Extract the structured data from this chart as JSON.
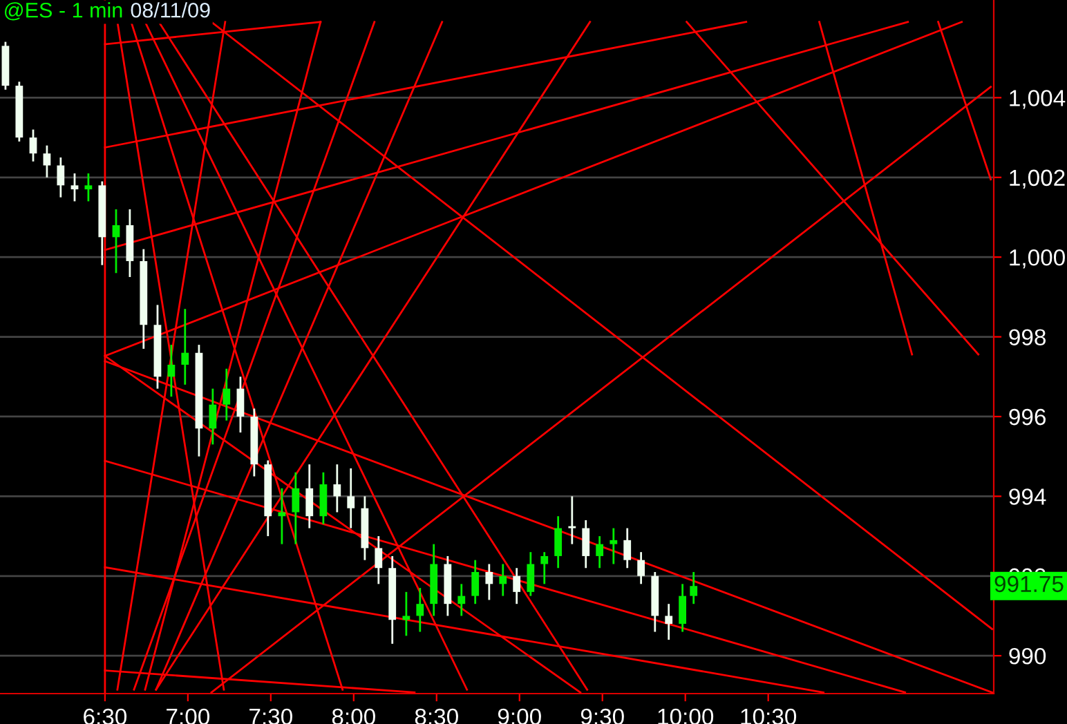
{
  "chart_data": {
    "type": "candlestick",
    "title": "@ES - 1 min",
    "subtitle": "08/11/09",
    "x": [
      5.9,
      5.983,
      6.067,
      6.15,
      6.233,
      6.317,
      6.4,
      6.483,
      6.567,
      6.65,
      6.733,
      6.817,
      6.9,
      6.983,
      7.067,
      7.15,
      7.233,
      7.317,
      7.4,
      7.483,
      7.567,
      7.65,
      7.733,
      7.817,
      7.9,
      7.983,
      8.067,
      8.15,
      8.233,
      8.317,
      8.4,
      8.483,
      8.567,
      8.65,
      8.733,
      8.817,
      8.9,
      8.983,
      9.067,
      9.15,
      9.233,
      9.317,
      9.4,
      9.483,
      9.567,
      9.65,
      9.733,
      9.817,
      9.9,
      9.983,
      10.05
    ],
    "ohlc": [
      [
        1005.3,
        1005.4,
        1004.2,
        1004.3
      ],
      [
        1004.3,
        1004.4,
        1002.9,
        1003.0
      ],
      [
        1003.0,
        1003.2,
        1002.4,
        1002.6
      ],
      [
        1002.6,
        1002.8,
        1002.0,
        1002.3
      ],
      [
        1002.3,
        1002.5,
        1001.5,
        1001.8
      ],
      [
        1001.8,
        1002.1,
        1001.4,
        1001.7
      ],
      [
        1001.7,
        1002.1,
        1001.4,
        1001.8
      ],
      [
        1001.8,
        1001.9,
        999.8,
        1000.5
      ],
      [
        1000.5,
        1001.2,
        999.6,
        1000.8
      ],
      [
        1000.8,
        1001.2,
        999.5,
        999.9
      ],
      [
        999.9,
        1000.2,
        997.7,
        998.3
      ],
      [
        998.3,
        998.8,
        996.7,
        997.0
      ],
      [
        997.0,
        997.8,
        996.5,
        997.3
      ],
      [
        997.3,
        998.7,
        996.8,
        997.6
      ],
      [
        997.6,
        997.8,
        995.0,
        995.7
      ],
      [
        995.7,
        996.7,
        995.3,
        996.3
      ],
      [
        996.3,
        997.2,
        995.9,
        996.7
      ],
      [
        996.7,
        997.0,
        995.6,
        996.0
      ],
      [
        996.0,
        996.2,
        994.5,
        994.8
      ],
      [
        994.8,
        994.9,
        993.0,
        993.5
      ],
      [
        993.5,
        994.2,
        992.8,
        993.6
      ],
      [
        993.6,
        994.6,
        992.8,
        994.2
      ],
      [
        994.2,
        994.8,
        993.2,
        993.5
      ],
      [
        993.5,
        994.6,
        993.3,
        994.3
      ],
      [
        994.3,
        994.8,
        993.6,
        994.0
      ],
      [
        994.0,
        994.7,
        993.2,
        993.7
      ],
      [
        993.7,
        994.0,
        992.4,
        992.7
      ],
      [
        992.7,
        993.0,
        991.8,
        992.2
      ],
      [
        992.2,
        992.5,
        990.3,
        990.9
      ],
      [
        990.9,
        991.6,
        990.5,
        991.0
      ],
      [
        991.0,
        991.7,
        990.6,
        991.3
      ],
      [
        991.3,
        992.8,
        991.0,
        992.3
      ],
      [
        992.3,
        992.5,
        991.0,
        991.3
      ],
      [
        991.3,
        991.8,
        991.0,
        991.5
      ],
      [
        991.5,
        992.4,
        991.3,
        992.1
      ],
      [
        992.1,
        992.3,
        991.4,
        991.8
      ],
      [
        991.8,
        992.3,
        991.5,
        992.0
      ],
      [
        992.0,
        992.2,
        991.3,
        991.6
      ],
      [
        991.6,
        992.6,
        991.5,
        992.3
      ],
      [
        992.3,
        992.6,
        991.8,
        992.5
      ],
      [
        992.5,
        993.5,
        992.2,
        993.2
      ],
      [
        993.2,
        994.0,
        992.8,
        993.2
      ],
      [
        993.2,
        993.4,
        992.2,
        992.5
      ],
      [
        992.5,
        993.0,
        992.2,
        992.8
      ],
      [
        992.8,
        993.2,
        992.3,
        992.9
      ],
      [
        992.9,
        993.2,
        992.2,
        992.4
      ],
      [
        992.4,
        992.6,
        991.8,
        992.0
      ],
      [
        992.0,
        992.1,
        990.6,
        991.0
      ],
      [
        991.0,
        991.3,
        990.4,
        990.8
      ],
      [
        990.8,
        991.8,
        990.6,
        991.5
      ],
      [
        991.5,
        992.1,
        991.3,
        991.75
      ]
    ],
    "colors": [
      "#f0fff0",
      "#f0fff0",
      "#f0fff0",
      "#f0fff0",
      "#f0fff0",
      "#f0fff0",
      "#00ee00",
      "#f0fff0",
      "#00ee00",
      "#f0fff0",
      "#f0fff0",
      "#f0fff0",
      "#00ee00",
      "#00ee00",
      "#f0fff0",
      "#00ee00",
      "#00ee00",
      "#f0fff0",
      "#f0fff0",
      "#f0fff0",
      "#00ee00",
      "#00ee00",
      "#f0fff0",
      "#00ee00",
      "#f0fff0",
      "#f0fff0",
      "#f0fff0",
      "#f0fff0",
      "#f0fff0",
      "#00ee00",
      "#00ee00",
      "#00ee00",
      "#f0fff0",
      "#00ee00",
      "#00ee00",
      "#f0fff0",
      "#00ee00",
      "#f0fff0",
      "#00ee00",
      "#00ee00",
      "#00ee00",
      "#f0fff0",
      "#f0fff0",
      "#00ee00",
      "#00ee00",
      "#f0fff0",
      "#f0fff0",
      "#f0fff0",
      "#f0fff0",
      "#00ee00",
      "#00ee00"
    ],
    "series": [
      {
        "type": "line",
        "color": "#ff0000",
        "x": [
          6.5,
          7.8
        ],
        "values": [
          1005.34,
          1005.9
        ]
      },
      {
        "type": "line",
        "color": "#ff0000",
        "x": [
          6.5,
          10.367
        ],
        "values": [
          1002.75,
          1005.9
        ]
      },
      {
        "type": "line",
        "color": "#ff0000",
        "x": [
          6.5,
          11.342
        ],
        "values": [
          1000.18,
          1005.9
        ]
      },
      {
        "type": "line",
        "color": "#ff0000",
        "x": [
          6.5,
          11.667
        ],
        "values": [
          997.52,
          1005.9
        ]
      },
      {
        "type": "line",
        "color": "#ff0000",
        "x": [
          7.142,
          11.842
        ],
        "values": [
          989.08,
          1004.27
        ]
      },
      {
        "type": "line",
        "color": "#ff0000",
        "x": [
          6.575,
          7.217
        ],
        "values": [
          1005.9,
          989.15
        ]
      },
      {
        "type": "line",
        "color": "#ff0000",
        "x": [
          6.658,
          7.933
        ],
        "values": [
          1005.9,
          989.15
        ]
      },
      {
        "type": "line",
        "color": "#ff0000",
        "x": [
          6.742,
          8.683
        ],
        "values": [
          1005.9,
          989.15
        ]
      },
      {
        "type": "line",
        "color": "#ff0000",
        "x": [
          6.825,
          9.408
        ],
        "values": [
          1005.9,
          989.15
        ]
      },
      {
        "type": "line",
        "color": "#ff0000",
        "x": [
          7.142,
          11.85
        ],
        "values": [
          1005.9,
          990.67
        ]
      },
      {
        "type": "line",
        "color": "#ff0000",
        "x": [
          6.5,
          9.367
        ],
        "values": [
          997.52,
          989.08
        ]
      },
      {
        "type": "line",
        "color": "#ff0000",
        "x": [
          6.5,
          11.325
        ],
        "values": [
          994.89,
          989.08
        ]
      },
      {
        "type": "line",
        "color": "#ff0000",
        "x": [
          6.5,
          11.85
        ],
        "values": [
          997.39,
          989.08
        ]
      },
      {
        "type": "line",
        "color": "#ff0000",
        "x": [
          6.5,
          10.833
        ],
        "values": [
          992.22,
          989.08
        ]
      },
      {
        "type": "line",
        "color": "#ff0000",
        "x": [
          6.5,
          8.367
        ],
        "values": [
          989.63,
          989.08
        ]
      },
      {
        "type": "line",
        "color": "#ff0000",
        "x": [
          6.808,
          8.533
        ],
        "values": [
          989.15,
          1005.9
        ]
      },
      {
        "type": "line",
        "color": "#ff0000",
        "x": [
          6.675,
          8.125
        ],
        "values": [
          989.15,
          1005.9
        ]
      },
      {
        "type": "line",
        "color": "#ff0000",
        "x": [
          6.575,
          7.225
        ],
        "values": [
          989.15,
          1005.9
        ]
      },
      {
        "type": "line",
        "color": "#ff0000",
        "x": [
          6.742,
          7.8
        ],
        "values": [
          989.15,
          1005.9
        ]
      },
      {
        "type": "line",
        "color": "#ff0000",
        "x": [
          6.808,
          9.425
        ],
        "values": [
          989.15,
          1005.9
        ]
      },
      {
        "type": "line",
        "color": "#ff0000",
        "x": [
          10.808,
          11.367
        ],
        "values": [
          1005.9,
          997.56
        ]
      },
      {
        "type": "line",
        "color": "#ff0000",
        "x": [
          11.525,
          11.842
        ],
        "values": [
          1005.9,
          1001.95
        ]
      },
      {
        "type": "line",
        "color": "#ff0000",
        "x": [
          10.008,
          11.767
        ],
        "values": [
          1005.9,
          997.56
        ]
      }
    ],
    "ref_lines": [
      {
        "axis": "x",
        "value": 6.5,
        "color": "#ff0000"
      }
    ],
    "annotations": [
      "991.75"
    ],
    "xlim": [
      5.867,
      11.86
    ],
    "ylim": [
      989.05,
      1006.45
    ],
    "xticks": [
      {
        "value": 6.5,
        "label": "6:30"
      },
      {
        "value": 7,
        "label": "7:00"
      },
      {
        "value": 7.5,
        "label": "7:30"
      },
      {
        "value": 8,
        "label": "8:00"
      },
      {
        "value": 8.5,
        "label": "8:30"
      },
      {
        "value": 9,
        "label": "9:00"
      },
      {
        "value": 9.5,
        "label": "9:30"
      },
      {
        "value": 10,
        "label": "10:00"
      },
      {
        "value": 10.5,
        "label": "10:30"
      }
    ],
    "yticks": [
      990,
      992,
      994,
      996,
      998,
      {
        "value": 1000,
        "label": "1,000"
      },
      {
        "value": 1002,
        "label": "1,002"
      },
      {
        "value": 1004,
        "label": "1,004"
      }
    ],
    "grid": "y",
    "legend": false
  }
}
